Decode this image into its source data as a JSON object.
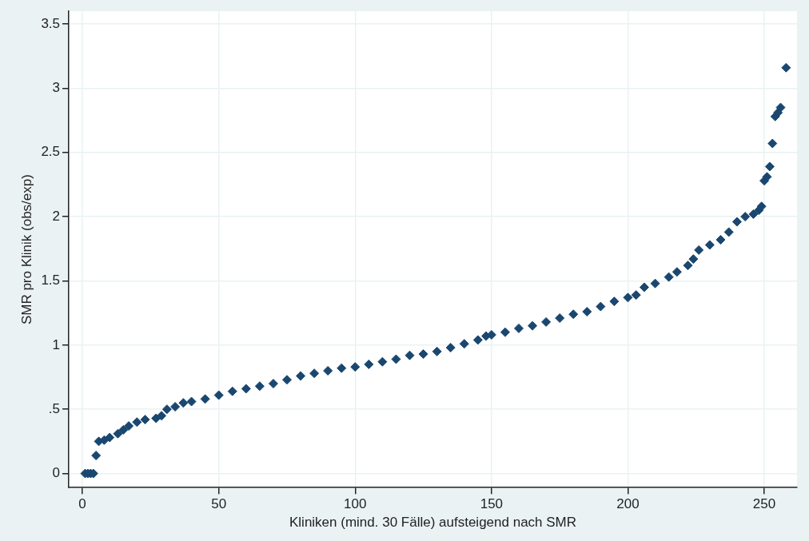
{
  "chart_data": {
    "type": "scatter",
    "xlabel": "Kliniken (mind. 30 Fälle) aufsteigend nach SMR",
    "ylabel": "SMR pro Klinik (obs/exp)",
    "x": [
      1,
      2,
      3,
      4,
      5,
      6,
      8,
      10,
      13,
      15,
      17,
      20,
      23,
      27,
      29,
      31,
      34,
      37,
      40,
      45,
      50,
      55,
      60,
      65,
      70,
      75,
      80,
      85,
      90,
      95,
      100,
      105,
      110,
      115,
      120,
      125,
      130,
      135,
      140,
      145,
      148,
      150,
      155,
      160,
      165,
      170,
      175,
      180,
      185,
      190,
      195,
      200,
      203,
      206,
      210,
      215,
      218,
      222,
      224,
      226,
      230,
      234,
      237,
      240,
      243,
      246,
      248,
      249,
      250,
      251,
      252,
      253,
      254,
      255,
      256,
      258
    ],
    "series": [
      {
        "color": "#1a476f",
        "values": [
          0,
          0,
          0,
          0,
          0.14,
          0.25,
          0.26,
          0.28,
          0.31,
          0.34,
          0.37,
          0.4,
          0.42,
          0.43,
          0.45,
          0.5,
          0.52,
          0.55,
          0.56,
          0.58,
          0.61,
          0.64,
          0.66,
          0.68,
          0.7,
          0.73,
          0.76,
          0.78,
          0.8,
          0.82,
          0.83,
          0.85,
          0.87,
          0.89,
          0.92,
          0.93,
          0.95,
          0.98,
          1.01,
          1.04,
          1.07,
          1.08,
          1.1,
          1.13,
          1.15,
          1.18,
          1.21,
          1.24,
          1.26,
          1.3,
          1.34,
          1.37,
          1.39,
          1.45,
          1.48,
          1.53,
          1.57,
          1.62,
          1.67,
          1.74,
          1.78,
          1.82,
          1.88,
          1.96,
          2,
          2.02,
          2.05,
          2.08,
          2.28,
          2.31,
          2.39,
          2.57,
          2.78,
          2.81,
          2.85,
          3.16
        ]
      }
    ],
    "xlim": [
      -5,
      262
    ],
    "xticks": [
      0,
      50,
      100,
      150,
      200,
      250
    ],
    "ylim": [
      -0.11,
      3.6
    ],
    "yticks": [
      {
        "value": 0,
        "label": "0"
      },
      {
        "value": 0.5,
        "label": ".5"
      },
      {
        "value": 1,
        "label": "1"
      },
      {
        "value": 1.5,
        "label": "1.5"
      },
      {
        "value": 2,
        "label": "2"
      },
      {
        "value": 2.5,
        "label": "2.5"
      },
      {
        "value": 3,
        "label": "3"
      },
      {
        "value": 3.5,
        "label": "3.5"
      }
    ],
    "grid": true,
    "marker": "diamond",
    "legend": false
  }
}
